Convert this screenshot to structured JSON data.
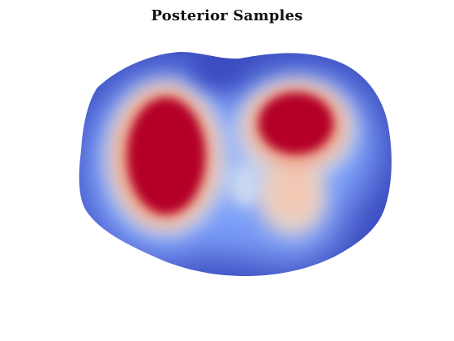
{
  "chart_data": {
    "type": "heatmap",
    "title": "Posterior Samples",
    "xlabel": "",
    "ylabel": "",
    "axes_visible": false,
    "grid": false,
    "legend": "none",
    "colormap": "coolwarm",
    "colormap_stops": [
      "#3b4cc0",
      "#8db0fe",
      "#dddddd",
      "#f49a7b",
      "#b40426"
    ],
    "colors": {
      "background": "#ffffff",
      "domain_base": "#3b4cc0",
      "saturated_high": "#b40426"
    },
    "regions": [
      {
        "name": "left-high-region",
        "level": "high"
      },
      {
        "name": "right-high-region",
        "level": "high"
      },
      {
        "name": "center-low-gap",
        "level": "low"
      }
    ]
  }
}
